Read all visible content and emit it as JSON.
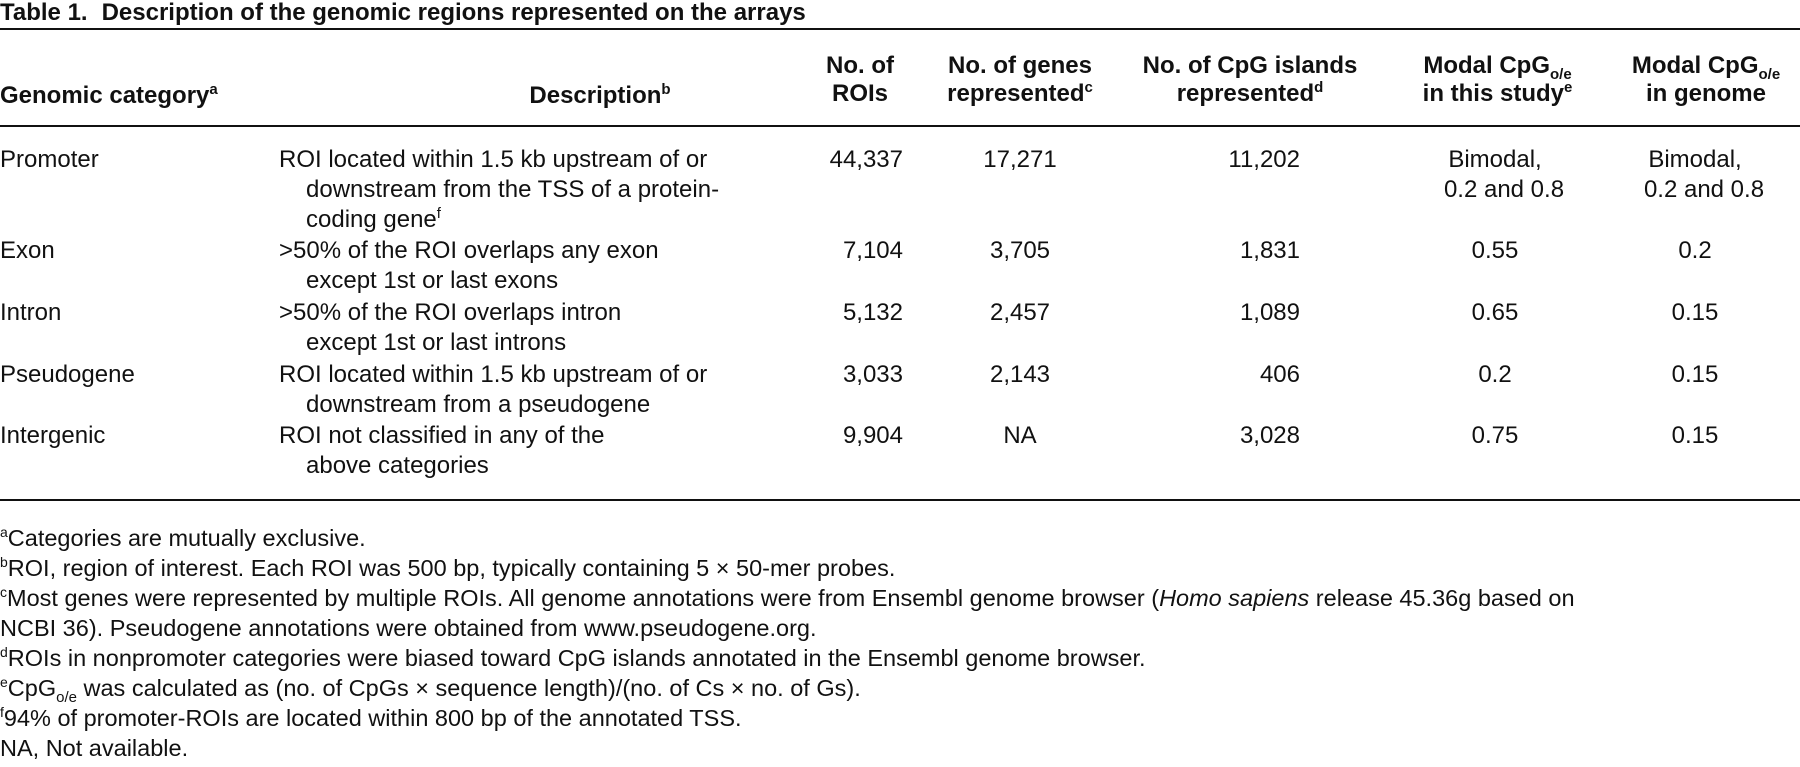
{
  "table": {
    "number": "Table 1.",
    "title": "Description of the genomic regions represented on the arrays",
    "headers": {
      "category": "Genomic category",
      "category_sup": "a",
      "description": "Description",
      "description_sup": "b",
      "rois_l1": "No. of",
      "rois_l2": "ROIs",
      "genes_l1": "No. of genes",
      "genes_l2": "represented",
      "genes_sup": "c",
      "cpg_l1": "No. of CpG islands",
      "cpg_l2": "represented",
      "cpg_sup": "d",
      "modal_study_l1": "Modal CpG",
      "modal_study_sub": "o/e",
      "modal_study_l2": "in this study",
      "modal_study_sup": "e",
      "modal_genome_l1": "Modal CpG",
      "modal_genome_sub": "o/e",
      "modal_genome_l2": "in genome"
    },
    "rows": [
      {
        "category": "Promoter",
        "desc_l1": "ROI located within 1.5 kb upstream of or",
        "desc_l2": "downstream from the TSS of a protein-",
        "desc_l3": "coding gene",
        "desc_sup": "f",
        "rois": "44,337",
        "genes": "17,271",
        "cpg": "11,202",
        "study_l1": "Bimodal,",
        "study_l2": "0.2 and 0.8",
        "genome_l1": "Bimodal,",
        "genome_l2": "0.2 and 0.8"
      },
      {
        "category": "Exon",
        "desc_l1": ">50% of the ROI overlaps any exon",
        "desc_l2": "except 1st or last exons",
        "rois": "7,104",
        "genes": "3,705",
        "cpg": "1,831",
        "study": "0.55",
        "genome": "0.2"
      },
      {
        "category": "Intron",
        "desc_l1": ">50% of the ROI overlaps intron",
        "desc_l2": "except 1st or last introns",
        "rois": "5,132",
        "genes": "2,457",
        "cpg": "1,089",
        "study": "0.65",
        "genome": "0.15"
      },
      {
        "category": "Pseudogene",
        "desc_l1": "ROI located within 1.5 kb upstream of or",
        "desc_l2": "downstream from a pseudogene",
        "rois": "3,033",
        "genes": "2,143",
        "cpg": "406",
        "study": "0.2",
        "genome": "0.15"
      },
      {
        "category": "Intergenic",
        "desc_l1": "ROI not classified in any of the",
        "desc_l2": "above categories",
        "rois": "9,904",
        "genes": "NA",
        "cpg": "3,028",
        "study": "0.75",
        "genome": "0.15"
      }
    ],
    "footnotes": {
      "a_mark": "a",
      "a_text": "Categories are mutually exclusive.",
      "b_mark": "b",
      "b_text": "ROI, region of interest. Each ROI was 500 bp, typically containing 5 × 50-mer probes.",
      "c_mark": "c",
      "c_text_1": "Most genes were represented by multiple ROIs. All genome annotations were from Ensembl genome browser (",
      "c_text_italic": "Homo sapiens",
      "c_text_2": " release 45.36g based on",
      "c_text_3": "NCBI 36). Pseudogene annotations were obtained from www.pseudogene.org.",
      "d_mark": "d",
      "d_text": "ROIs in nonpromoter categories were biased toward CpG islands annotated in the Ensembl genome browser.",
      "e_mark": "e",
      "e_text_1": "CpG",
      "e_sub": "o/e",
      "e_text_2": " was calculated as (no. of CpGs × sequence length)/(no. of Cs × no. of Gs).",
      "f_mark": "f",
      "f_text": "94% of promoter-ROIs are located within 800 bp of the annotated TSS.",
      "na_text": "NA, Not available."
    }
  }
}
